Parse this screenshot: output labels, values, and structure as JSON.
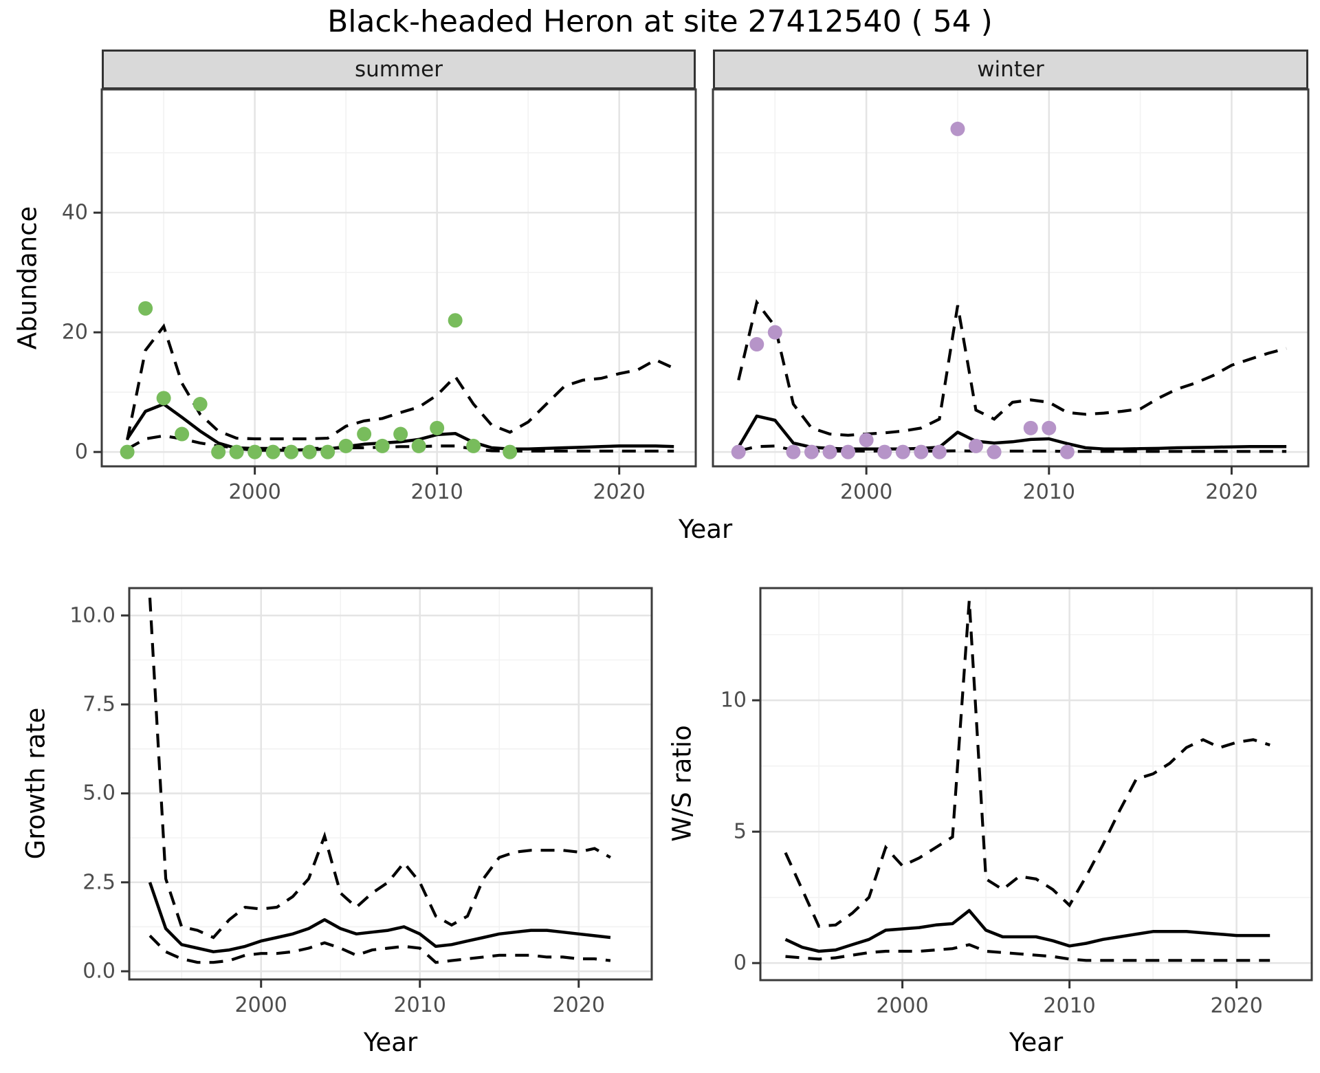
{
  "title": "Black-headed Heron at site 27412540 ( 54 )",
  "facets": {
    "summer_label": "summer",
    "winter_label": "winter"
  },
  "axis_titles": {
    "top_x": "Year",
    "top_y": "Abundance",
    "growth_x": "Year",
    "growth_y": "Growth rate",
    "ws_x": "Year",
    "ws_y": "W/S ratio"
  },
  "colors": {
    "summer_point": "#78BC5C",
    "winter_point": "#B694C8",
    "line": "#000000",
    "grid_major": "#E4E4E4",
    "grid_minor": "#F2F2F2",
    "panel_border": "#3b3b3b",
    "strip_bg": "#d9d9d9",
    "tick_mark": "#333333",
    "tick_text": "#4d4d4d"
  },
  "chart_data": [
    {
      "key": "summer",
      "type": "scatter-line",
      "facet": "summer",
      "title": "",
      "xlabel": "Year",
      "ylabel": "Abundance",
      "xlim": [
        1991.6,
        2024.2
      ],
      "ylim": [
        -2.4,
        60.6
      ],
      "legend": "none",
      "grid": "on",
      "axes": {
        "x_values": [
          2000,
          2010,
          2020
        ],
        "x_labels": [
          "2000",
          "2010",
          "2020"
        ],
        "x_minor": [
          1995,
          2005,
          2015
        ],
        "y_values": [
          0,
          20,
          40
        ],
        "y_labels": [
          "0",
          "20",
          "40"
        ],
        "y_minor": [
          10,
          30,
          50
        ],
        "draw_y_labels": true
      },
      "point_color": "#78BC5C",
      "points": [
        [
          1993,
          0
        ],
        [
          1994,
          24
        ],
        [
          1995,
          9
        ],
        [
          1996,
          3
        ],
        [
          1997,
          8
        ],
        [
          1998,
          0
        ],
        [
          1999,
          0
        ],
        [
          2000,
          0
        ],
        [
          2001,
          0
        ],
        [
          2002,
          0
        ],
        [
          2003,
          0
        ],
        [
          2004,
          0
        ],
        [
          2005,
          1
        ],
        [
          2006,
          3
        ],
        [
          2007,
          1
        ],
        [
          2008,
          3
        ],
        [
          2009,
          1
        ],
        [
          2010,
          4
        ],
        [
          2011,
          22
        ],
        [
          2012,
          1
        ],
        [
          2014,
          0
        ]
      ],
      "series": {
        "years": [
          1993,
          1994,
          1995,
          1996,
          1997,
          1998,
          1999,
          2000,
          2001,
          2002,
          2003,
          2004,
          2005,
          2006,
          2007,
          2008,
          2009,
          2010,
          2011,
          2012,
          2013,
          2014,
          2015,
          2016,
          2017,
          2018,
          2019,
          2020,
          2021,
          2022,
          2023
        ],
        "median": [
          2.2,
          6.8,
          8.0,
          5.8,
          3.5,
          1.5,
          0.6,
          0.3,
          0.3,
          0.3,
          0.4,
          0.5,
          0.9,
          1.3,
          1.5,
          1.7,
          2.1,
          2.9,
          3.1,
          1.6,
          0.7,
          0.5,
          0.5,
          0.6,
          0.7,
          0.8,
          0.9,
          1.0,
          1.0,
          1.0,
          0.9
        ],
        "upper": [
          2,
          17,
          21,
          11.5,
          6.3,
          3.5,
          2.3,
          2.2,
          2.2,
          2.2,
          2.2,
          2.3,
          4.3,
          5.2,
          5.6,
          6.6,
          7.5,
          9.5,
          12.6,
          8,
          4.5,
          3.3,
          5,
          8,
          11,
          12,
          12.3,
          13.1,
          13.7,
          15.4,
          14
        ],
        "lower": [
          0.5,
          2.2,
          2.7,
          2.2,
          1.5,
          1.0,
          0.7,
          0.6,
          0.6,
          0.6,
          0.6,
          0.6,
          0.7,
          0.7,
          0.8,
          0.9,
          0.9,
          1.0,
          1.0,
          0.5,
          0.2,
          0.15,
          0.15,
          0.15,
          0.15,
          0.15,
          0.15,
          0.15,
          0.15,
          0.15,
          0.15
        ]
      }
    },
    {
      "key": "winter",
      "type": "scatter-line",
      "facet": "winter",
      "title": "",
      "xlabel": "Year",
      "ylabel": "Abundance",
      "xlim": [
        1991.6,
        2024.2
      ],
      "ylim": [
        -2.4,
        60.6
      ],
      "legend": "none",
      "grid": "on",
      "axes": {
        "x_values": [
          2000,
          2010,
          2020
        ],
        "x_labels": [
          "2000",
          "2010",
          "2020"
        ],
        "x_minor": [
          1995,
          2005,
          2015
        ],
        "y_values": [
          0,
          20,
          40
        ],
        "y_labels": [
          "0",
          "20",
          "40"
        ],
        "y_minor": [
          10,
          30,
          50
        ],
        "draw_y_labels": false
      },
      "point_color": "#B694C8",
      "points": [
        [
          1993,
          0
        ],
        [
          1994,
          18
        ],
        [
          1995,
          20
        ],
        [
          1996,
          0
        ],
        [
          1997,
          0
        ],
        [
          1998,
          0
        ],
        [
          1999,
          0
        ],
        [
          2000,
          2
        ],
        [
          2001,
          0
        ],
        [
          2002,
          0
        ],
        [
          2003,
          0
        ],
        [
          2004,
          0
        ],
        [
          2005,
          54
        ],
        [
          2006,
          1
        ],
        [
          2007,
          0
        ],
        [
          2009,
          4
        ],
        [
          2010,
          4
        ],
        [
          2011,
          0
        ]
      ],
      "series": {
        "years": [
          1993,
          1994,
          1995,
          1996,
          1997,
          1998,
          1999,
          2000,
          2001,
          2002,
          2003,
          2004,
          2005,
          2006,
          2007,
          2008,
          2009,
          2010,
          2011,
          2012,
          2013,
          2014,
          2015,
          2016,
          2017,
          2018,
          2019,
          2020,
          2021,
          2022,
          2023
        ],
        "median": [
          0.8,
          6,
          5.3,
          1.5,
          0.8,
          0.6,
          0.5,
          0.5,
          0.5,
          0.5,
          0.6,
          0.8,
          3.3,
          1.8,
          1.5,
          1.7,
          2.1,
          2.2,
          1.4,
          0.7,
          0.5,
          0.5,
          0.55,
          0.6,
          0.7,
          0.75,
          0.8,
          0.85,
          0.9,
          0.9,
          0.9
        ],
        "upper": [
          12,
          25,
          21,
          8,
          4,
          3,
          2.8,
          3,
          3.2,
          3.5,
          4,
          5.5,
          24.5,
          7,
          5.5,
          8.3,
          8.7,
          8.3,
          6.6,
          6.3,
          6.5,
          6.8,
          7.2,
          9,
          10.5,
          11.5,
          12.8,
          14.5,
          15.5,
          16.5,
          17.3
        ],
        "lower": [
          0.2,
          0.9,
          1.0,
          0.3,
          0.15,
          0.15,
          0.15,
          0.15,
          0.15,
          0.15,
          0.15,
          0.15,
          0.2,
          0.15,
          0.15,
          0.15,
          0.15,
          0.15,
          0.1,
          0.1,
          0.1,
          0.1,
          0.1,
          0.1,
          0.1,
          0.1,
          0.1,
          0.1,
          0.1,
          0.1,
          0.1
        ]
      }
    },
    {
      "key": "growth",
      "type": "line",
      "title": "",
      "xlabel": "Year",
      "ylabel": "Growth rate",
      "xlim": [
        1991.7,
        2024.6
      ],
      "ylim": [
        -0.23,
        10.77
      ],
      "legend": "none",
      "grid": "on",
      "axes": {
        "x_values": [
          2000,
          2010,
          2020
        ],
        "x_labels": [
          "2000",
          "2010",
          "2020"
        ],
        "x_minor": [
          1995,
          2005,
          2015
        ],
        "y_values": [
          0,
          2.5,
          5,
          7.5,
          10
        ],
        "y_labels": [
          "0.0",
          "2.5",
          "5.0",
          "7.5",
          "10.0"
        ],
        "y_minor": [
          1.25,
          3.75,
          6.25,
          8.75
        ],
        "draw_y_labels": true
      },
      "points": [],
      "series": {
        "years": [
          1993,
          1994,
          1995,
          1996,
          1997,
          1998,
          1999,
          2000,
          2001,
          2002,
          2003,
          2004,
          2005,
          2006,
          2007,
          2008,
          2009,
          2010,
          2011,
          2012,
          2013,
          2014,
          2015,
          2016,
          2017,
          2018,
          2019,
          2020,
          2021,
          2022
        ],
        "median": [
          2.5,
          1.2,
          0.75,
          0.65,
          0.55,
          0.6,
          0.7,
          0.85,
          0.95,
          1.05,
          1.2,
          1.45,
          1.2,
          1.05,
          1.1,
          1.15,
          1.25,
          1.05,
          0.7,
          0.75,
          0.85,
          0.95,
          1.05,
          1.1,
          1.15,
          1.15,
          1.1,
          1.05,
          1.0,
          0.95
        ],
        "upper": [
          10.5,
          2.6,
          1.25,
          1.15,
          0.95,
          1.45,
          1.8,
          1.75,
          1.8,
          2.1,
          2.6,
          3.8,
          2.2,
          1.8,
          2.2,
          2.5,
          3.05,
          2.5,
          1.55,
          1.3,
          1.55,
          2.6,
          3.2,
          3.35,
          3.4,
          3.4,
          3.4,
          3.35,
          3.45,
          3.2
        ],
        "lower": [
          1.0,
          0.55,
          0.35,
          0.25,
          0.25,
          0.3,
          0.45,
          0.5,
          0.5,
          0.55,
          0.65,
          0.8,
          0.65,
          0.45,
          0.6,
          0.65,
          0.7,
          0.65,
          0.25,
          0.3,
          0.35,
          0.4,
          0.45,
          0.45,
          0.45,
          0.4,
          0.4,
          0.35,
          0.35,
          0.3
        ]
      }
    },
    {
      "key": "ws",
      "type": "line",
      "title": "",
      "xlabel": "Year",
      "ylabel": "W/S ratio",
      "xlim": [
        1991.5,
        2024.5
      ],
      "ylim": [
        -0.65,
        14.27
      ],
      "legend": "none",
      "grid": "on",
      "axes": {
        "x_values": [
          2000,
          2010,
          2020
        ],
        "x_labels": [
          "2000",
          "2010",
          "2020"
        ],
        "x_minor": [
          1995,
          2005,
          2015
        ],
        "y_values": [
          0,
          5,
          10
        ],
        "y_labels": [
          "0",
          "5",
          "10"
        ],
        "y_minor": [
          2.5,
          7.5,
          12.5
        ],
        "draw_y_labels": true
      },
      "points": [],
      "series": {
        "years": [
          1993,
          1994,
          1995,
          1996,
          1997,
          1998,
          1999,
          2000,
          2001,
          2002,
          2003,
          2004,
          2005,
          2006,
          2007,
          2008,
          2009,
          2010,
          2011,
          2012,
          2013,
          2014,
          2015,
          2016,
          2017,
          2018,
          2019,
          2020,
          2021,
          2022
        ],
        "median": [
          0.9,
          0.6,
          0.45,
          0.5,
          0.7,
          0.9,
          1.25,
          1.3,
          1.35,
          1.45,
          1.5,
          2.0,
          1.25,
          1.0,
          1.0,
          1.0,
          0.85,
          0.65,
          0.75,
          0.9,
          1.0,
          1.1,
          1.2,
          1.2,
          1.2,
          1.15,
          1.1,
          1.05,
          1.05,
          1.05
        ],
        "upper": [
          4.2,
          2.8,
          1.4,
          1.45,
          1.9,
          2.5,
          4.4,
          3.7,
          4.0,
          4.4,
          4.8,
          13.8,
          3.2,
          2.8,
          3.3,
          3.2,
          2.8,
          2.2,
          3.3,
          4.5,
          5.8,
          7.0,
          7.2,
          7.6,
          8.2,
          8.5,
          8.2,
          8.4,
          8.5,
          8.3
        ],
        "lower": [
          0.25,
          0.2,
          0.15,
          0.2,
          0.3,
          0.4,
          0.45,
          0.45,
          0.45,
          0.5,
          0.55,
          0.7,
          0.45,
          0.4,
          0.35,
          0.3,
          0.25,
          0.15,
          0.1,
          0.1,
          0.1,
          0.1,
          0.1,
          0.1,
          0.1,
          0.1,
          0.1,
          0.1,
          0.1,
          0.1
        ]
      }
    }
  ]
}
